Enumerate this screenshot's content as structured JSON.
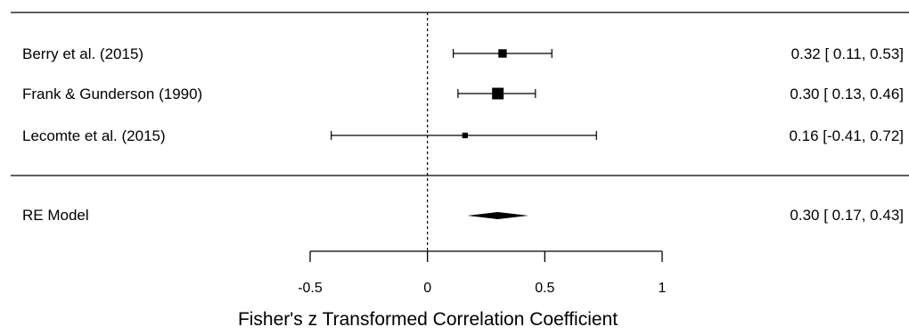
{
  "chart_data": {
    "type": "forest",
    "title": "",
    "xlabel": "Fisher's z Transformed Correlation Coefficient",
    "xticks": [
      -0.5,
      0,
      0.5,
      1
    ],
    "xtick_labels": [
      "-0.5",
      "0",
      "0.5",
      "1"
    ],
    "xlim": [
      -0.5,
      1
    ],
    "reference_line": 0,
    "studies": [
      {
        "label": "Berry et al. (2015)",
        "estimate": 0.32,
        "lower": 0.11,
        "upper": 0.53,
        "text": "0.32 [ 0.11, 0.53]",
        "weight": 0.6
      },
      {
        "label": "Frank & Gunderson (1990)",
        "estimate": 0.3,
        "lower": 0.13,
        "upper": 0.46,
        "text": "0.30 [ 0.13, 0.46]",
        "weight": 1.0
      },
      {
        "label": "Lecomte et al. (2015)",
        "estimate": 0.16,
        "lower": -0.41,
        "upper": 0.72,
        "text": "0.16 [-0.41, 0.72]",
        "weight": 0.25
      }
    ],
    "summary": {
      "label": "RE Model",
      "estimate": 0.3,
      "lower": 0.17,
      "upper": 0.43,
      "text": "0.30 [ 0.17, 0.43]"
    }
  }
}
